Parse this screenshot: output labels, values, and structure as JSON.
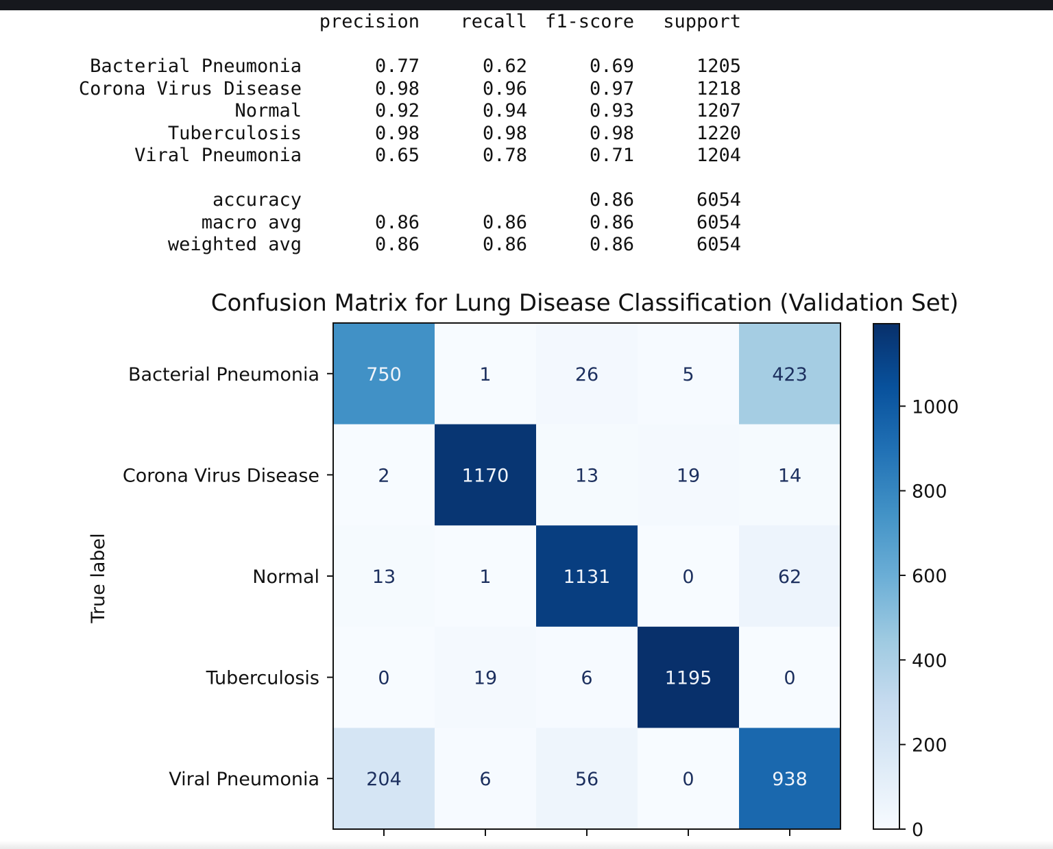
{
  "report": {
    "headers": [
      "precision",
      "recall",
      "f1-score",
      "support"
    ],
    "rows": [
      {
        "label": "Bacterial Pneumonia",
        "precision": "0.77",
        "recall": "0.62",
        "f1": "0.69",
        "support": "1205"
      },
      {
        "label": "Corona Virus Disease",
        "precision": "0.98",
        "recall": "0.96",
        "f1": "0.97",
        "support": "1218"
      },
      {
        "label": "Normal",
        "precision": "0.92",
        "recall": "0.94",
        "f1": "0.93",
        "support": "1207"
      },
      {
        "label": "Tuberculosis",
        "precision": "0.98",
        "recall": "0.98",
        "f1": "0.98",
        "support": "1220"
      },
      {
        "label": "Viral Pneumonia",
        "precision": "0.65",
        "recall": "0.78",
        "f1": "0.71",
        "support": "1204"
      }
    ],
    "summary": [
      {
        "label": "accuracy",
        "precision": "",
        "recall": "",
        "f1": "0.86",
        "support": "6054"
      },
      {
        "label": "macro avg",
        "precision": "0.86",
        "recall": "0.86",
        "f1": "0.86",
        "support": "6054"
      },
      {
        "label": "weighted avg",
        "precision": "0.86",
        "recall": "0.86",
        "f1": "0.86",
        "support": "6054"
      }
    ]
  },
  "chart_data": {
    "type": "heatmap",
    "title": "Confusion Matrix for Lung Disease Classification (Validation Set)",
    "ylabel": "True label",
    "xlabel": "",
    "row_labels": [
      "Bacterial Pneumonia",
      "Corona Virus Disease",
      "Normal",
      "Tuberculosis",
      "Viral Pneumonia"
    ],
    "matrix": [
      [
        750,
        1,
        26,
        5,
        423
      ],
      [
        2,
        1170,
        13,
        19,
        14
      ],
      [
        13,
        1,
        1131,
        0,
        62
      ],
      [
        0,
        19,
        6,
        1195,
        0
      ],
      [
        204,
        6,
        56,
        0,
        938
      ]
    ],
    "colormap": "Blues",
    "colorbar_ticks": [
      0,
      200,
      400,
      600,
      800,
      1000
    ],
    "colorbar_range": [
      0,
      1195
    ],
    "colors": {
      "low": "#f7fbff",
      "high": "#08306b",
      "text_dark": "#1c2f5e",
      "text_light": "#f0f4fa"
    }
  }
}
